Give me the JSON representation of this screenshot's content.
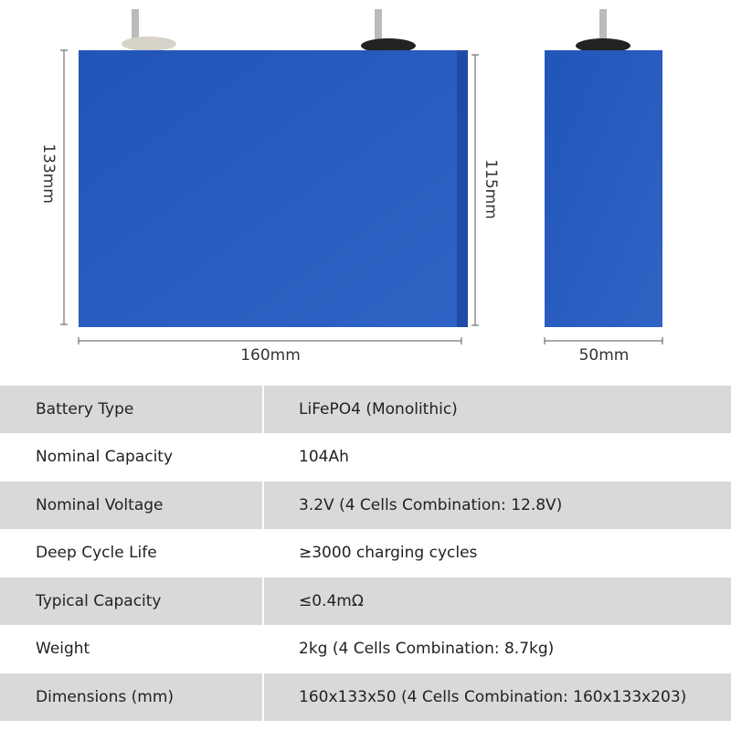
{
  "dimensions": {
    "front_height": "133mm",
    "body_height": "115mm",
    "front_width": "160mm",
    "side_width": "50mm"
  },
  "table": {
    "rows": [
      [
        "Battery Type",
        "LiFePO4 (Monolithic)"
      ],
      [
        "Nominal Capacity",
        "104Ah"
      ],
      [
        "Nominal Voltage",
        "3.2V (4 Cells Combination: 12.8V)"
      ],
      [
        "Deep Cycle Life",
        "≥3000 charging cycles"
      ],
      [
        "Typical Capacity",
        "≤0.4mΩ"
      ],
      [
        "Weight",
        "2kg (4 Cells Combination: 8.7kg)"
      ],
      [
        "Dimensions (mm)",
        "160x133x50 (4 Cells Combination: 160x133x203)"
      ]
    ]
  }
}
